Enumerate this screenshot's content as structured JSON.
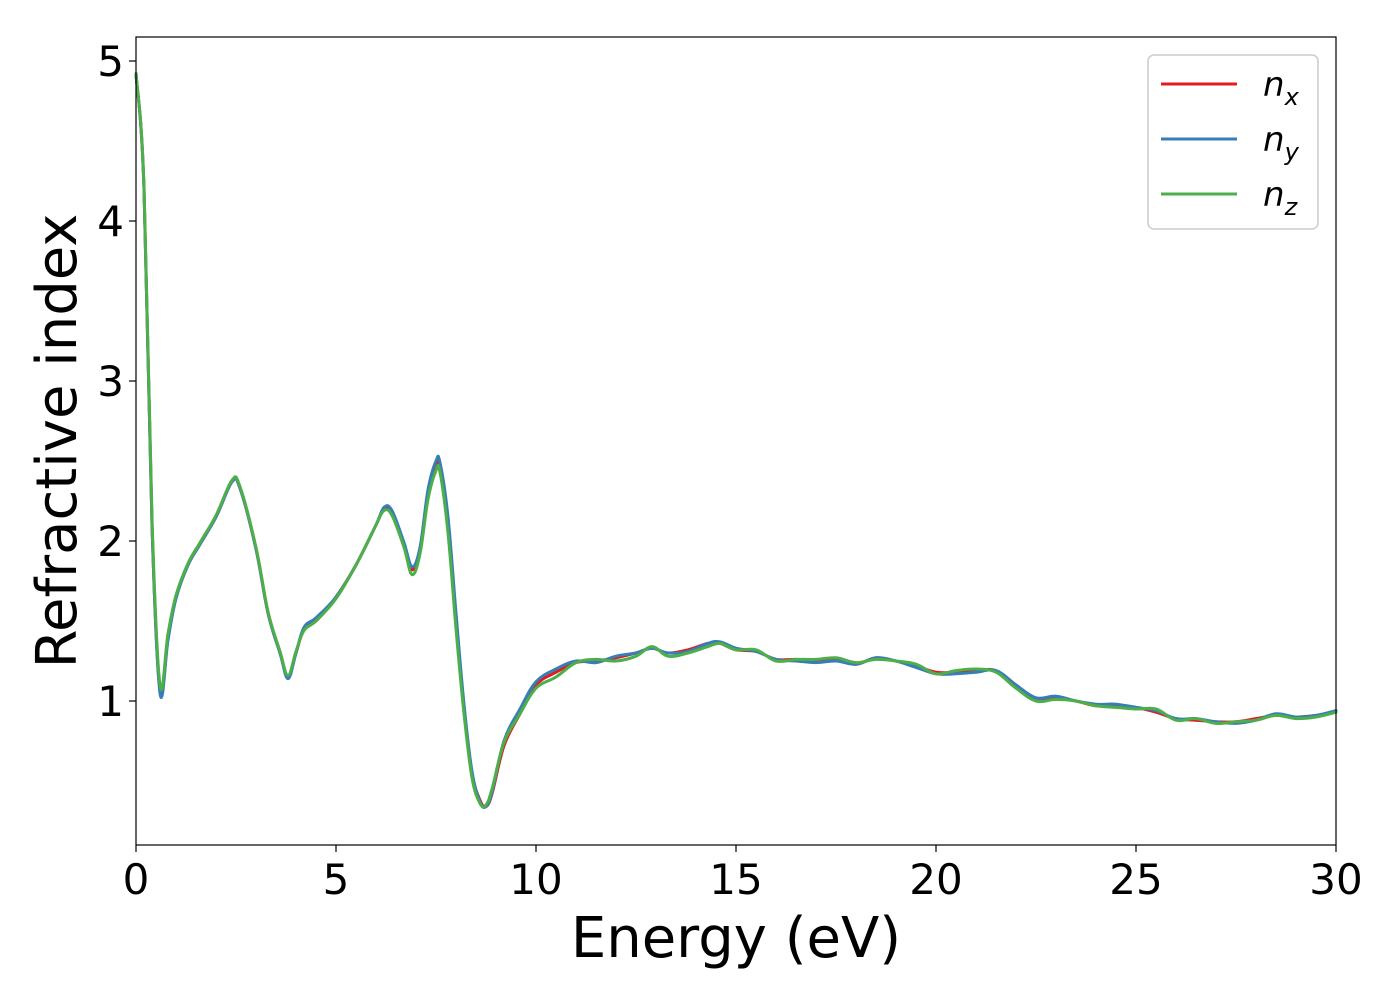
{
  "chart_data": {
    "type": "line",
    "xlabel": "Energy (eV)",
    "ylabel": "Refractive index",
    "xlim": [
      0,
      30
    ],
    "ylim": [
      0.1,
      5.15
    ],
    "xticks": [
      "0",
      "5",
      "10",
      "15",
      "20",
      "25",
      "30"
    ],
    "yticks": [
      "1",
      "2",
      "3",
      "4",
      "5"
    ],
    "grid": false,
    "legend_position": "top-right",
    "series": [
      {
        "name": "n_x",
        "legend_base": "n",
        "legend_sub": "x",
        "color": "#e41a1c",
        "x": [
          0,
          0.2,
          0.4,
          0.6,
          0.8,
          1.0,
          1.3,
          1.6,
          2.0,
          2.4,
          2.6,
          3.0,
          3.3,
          3.6,
          3.8,
          4.0,
          4.2,
          4.5,
          5.0,
          5.5,
          6.0,
          6.2,
          6.4,
          6.7,
          6.9,
          7.1,
          7.3,
          7.5,
          7.6,
          7.8,
          8.0,
          8.2,
          8.4,
          8.6,
          8.75,
          8.9,
          9.2,
          9.6,
          10.0,
          10.5,
          11.0,
          11.5,
          12.0,
          12.5,
          12.9,
          13.3,
          13.8,
          14.3,
          14.6,
          15.0,
          15.5,
          16.0,
          16.5,
          17.0,
          17.5,
          18.0,
          18.5,
          19.0,
          19.5,
          20.0,
          20.5,
          21.0,
          21.5,
          22.0,
          22.5,
          23.0,
          23.5,
          24.0,
          24.5,
          25.0,
          25.5,
          26.0,
          26.5,
          27.0,
          27.5,
          28.0,
          28.5,
          29.0,
          29.5,
          30.0
        ],
        "y": [
          4.92,
          4.2,
          2.1,
          1.07,
          1.4,
          1.65,
          1.85,
          1.98,
          2.15,
          2.37,
          2.33,
          1.95,
          1.55,
          1.3,
          1.15,
          1.3,
          1.45,
          1.5,
          1.65,
          1.85,
          2.1,
          2.2,
          2.18,
          1.98,
          1.82,
          1.95,
          2.3,
          2.48,
          2.46,
          2.1,
          1.5,
          0.95,
          0.55,
          0.38,
          0.34,
          0.42,
          0.72,
          0.92,
          1.1,
          1.18,
          1.24,
          1.25,
          1.27,
          1.3,
          1.33,
          1.3,
          1.32,
          1.36,
          1.36,
          1.32,
          1.31,
          1.26,
          1.26,
          1.25,
          1.26,
          1.23,
          1.27,
          1.25,
          1.22,
          1.18,
          1.18,
          1.19,
          1.19,
          1.1,
          1.01,
          1.02,
          1.0,
          0.97,
          0.97,
          0.96,
          0.93,
          0.89,
          0.88,
          0.87,
          0.87,
          0.89,
          0.91,
          0.9,
          0.91,
          0.93
        ]
      },
      {
        "name": "n_y",
        "legend_base": "n",
        "legend_sub": "y",
        "color": "#377eb8",
        "x": [
          0,
          0.2,
          0.4,
          0.6,
          0.8,
          1.0,
          1.3,
          1.6,
          2.0,
          2.4,
          2.6,
          3.0,
          3.3,
          3.6,
          3.8,
          4.0,
          4.2,
          4.5,
          5.0,
          5.5,
          6.0,
          6.2,
          6.4,
          6.7,
          6.9,
          7.1,
          7.3,
          7.5,
          7.6,
          7.8,
          8.0,
          8.2,
          8.4,
          8.6,
          8.75,
          8.9,
          9.2,
          9.6,
          10.0,
          10.5,
          11.0,
          11.5,
          12.0,
          12.5,
          12.9,
          13.3,
          13.8,
          14.3,
          14.6,
          15.0,
          15.5,
          16.0,
          16.5,
          17.0,
          17.5,
          18.0,
          18.5,
          19.0,
          19.5,
          20.0,
          20.5,
          21.0,
          21.5,
          22.0,
          22.5,
          23.0,
          23.5,
          24.0,
          24.5,
          25.0,
          25.5,
          26.0,
          26.5,
          27.0,
          27.5,
          28.0,
          28.5,
          29.0,
          29.5,
          30.0
        ],
        "y": [
          4.92,
          4.2,
          2.1,
          1.05,
          1.38,
          1.64,
          1.85,
          1.98,
          2.15,
          2.37,
          2.33,
          1.95,
          1.55,
          1.3,
          1.14,
          1.3,
          1.46,
          1.52,
          1.65,
          1.85,
          2.1,
          2.21,
          2.19,
          1.99,
          1.84,
          1.96,
          2.32,
          2.5,
          2.49,
          2.15,
          1.55,
          0.98,
          0.56,
          0.37,
          0.34,
          0.43,
          0.75,
          0.95,
          1.12,
          1.2,
          1.25,
          1.24,
          1.28,
          1.3,
          1.33,
          1.3,
          1.31,
          1.36,
          1.37,
          1.33,
          1.31,
          1.26,
          1.25,
          1.24,
          1.25,
          1.23,
          1.27,
          1.25,
          1.21,
          1.17,
          1.17,
          1.18,
          1.19,
          1.1,
          1.02,
          1.03,
          1.0,
          0.98,
          0.98,
          0.96,
          0.94,
          0.89,
          0.89,
          0.87,
          0.86,
          0.88,
          0.92,
          0.9,
          0.91,
          0.94
        ]
      },
      {
        "name": "n_z",
        "legend_base": "n",
        "legend_sub": "z",
        "color": "#4daf4a",
        "x": [
          0,
          0.2,
          0.4,
          0.6,
          0.8,
          1.0,
          1.3,
          1.6,
          2.0,
          2.4,
          2.6,
          3.0,
          3.3,
          3.6,
          3.8,
          4.0,
          4.2,
          4.5,
          5.0,
          5.5,
          6.0,
          6.2,
          6.4,
          6.7,
          6.9,
          7.1,
          7.3,
          7.5,
          7.6,
          7.8,
          8.0,
          8.2,
          8.4,
          8.6,
          8.75,
          8.9,
          9.2,
          9.6,
          10.0,
          10.5,
          11.0,
          11.5,
          12.0,
          12.5,
          12.9,
          13.3,
          13.8,
          14.3,
          14.6,
          15.0,
          15.5,
          16.0,
          16.5,
          17.0,
          17.5,
          18.0,
          18.5,
          19.0,
          19.5,
          20.0,
          20.5,
          21.0,
          21.5,
          22.0,
          22.5,
          23.0,
          23.5,
          24.0,
          24.5,
          25.0,
          25.5,
          26.0,
          26.5,
          27.0,
          27.5,
          28.0,
          28.5,
          29.0,
          29.5,
          30.0
        ],
        "y": [
          4.92,
          4.22,
          2.15,
          1.1,
          1.42,
          1.66,
          1.86,
          1.99,
          2.16,
          2.38,
          2.34,
          1.96,
          1.56,
          1.31,
          1.16,
          1.31,
          1.44,
          1.5,
          1.64,
          1.85,
          2.1,
          2.19,
          2.16,
          1.96,
          1.79,
          1.92,
          2.26,
          2.44,
          2.43,
          2.05,
          1.45,
          0.92,
          0.52,
          0.36,
          0.35,
          0.45,
          0.74,
          0.92,
          1.08,
          1.15,
          1.24,
          1.26,
          1.25,
          1.28,
          1.34,
          1.28,
          1.3,
          1.34,
          1.36,
          1.32,
          1.32,
          1.25,
          1.26,
          1.26,
          1.27,
          1.24,
          1.26,
          1.25,
          1.23,
          1.17,
          1.19,
          1.2,
          1.18,
          1.08,
          1.0,
          1.01,
          1.0,
          0.97,
          0.96,
          0.95,
          0.95,
          0.88,
          0.89,
          0.86,
          0.87,
          0.88,
          0.91,
          0.89,
          0.9,
          0.93
        ]
      }
    ]
  }
}
